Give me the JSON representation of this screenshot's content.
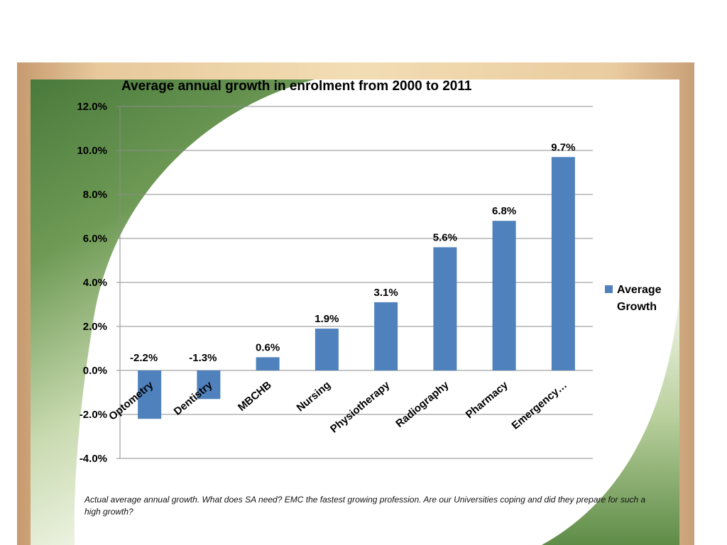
{
  "caption": "Actual  average annual growth. What does  SA need?  EMC the fastest growing profession. Are our Universities coping and did they prepare for such a high growth?",
  "colors": {
    "bar": "#4f81bd",
    "gridline": "#8c8c8c",
    "swoosh_dark": "#4a7a3c",
    "swoosh_light": "#eef3e2",
    "frame": "#e6c89a"
  },
  "chart_data": {
    "type": "bar",
    "title": "Average annual growth in enrolment from 2000 to 2011",
    "categories": [
      "Optometry",
      "Dentistry",
      "MBCHB",
      "Nursing",
      "Physiotherapy",
      "Radiography",
      "Pharmacy",
      "Emergency…"
    ],
    "series": [
      {
        "name": "Average Growth",
        "values": [
          -2.2,
          -1.3,
          0.6,
          1.9,
          3.1,
          5.6,
          6.8,
          9.7
        ],
        "data_labels": [
          "-2.2%",
          "-1.3%",
          "0.6%",
          "1.9%",
          "3.1%",
          "5.6%",
          "6.8%",
          "9.7%"
        ]
      }
    ],
    "ylim": [
      -4.0,
      12.0
    ],
    "yticks": [
      12.0,
      10.0,
      8.0,
      6.0,
      4.0,
      2.0,
      0.0,
      -2.0,
      -4.0
    ],
    "ytick_labels": [
      "12.0%",
      "10.0%",
      "8.0%",
      "6.0%",
      "4.0%",
      "2.0%",
      "0.0%",
      "-2.0%",
      "-4.0%"
    ],
    "grid": true,
    "legend": {
      "position": "right",
      "lines": [
        "Average",
        "Growth"
      ]
    },
    "xlabel": "",
    "ylabel": ""
  }
}
